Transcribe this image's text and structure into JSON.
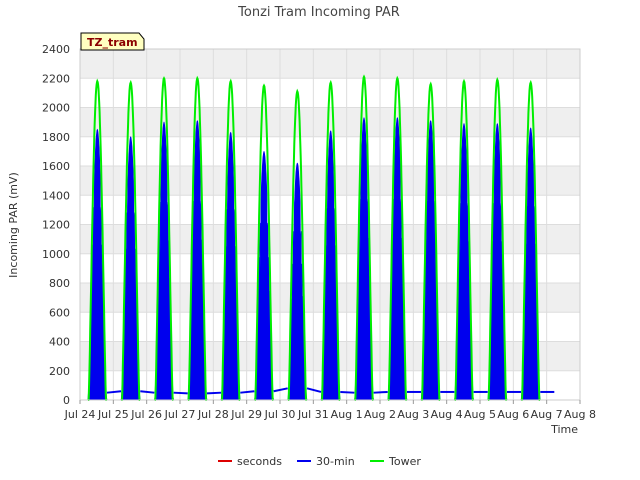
{
  "chart_data": {
    "type": "line",
    "title": "Tonzi Tram Incoming PAR",
    "xlabel": "Time",
    "ylabel": "Incoming PAR (mV)",
    "badge": "TZ_tram",
    "ylim": [
      0,
      2400
    ],
    "yticks": [
      0,
      200,
      400,
      600,
      800,
      1000,
      1200,
      1400,
      1600,
      1800,
      2000,
      2200,
      2400
    ],
    "xticks": [
      "Jul 24",
      "Jul 25",
      "Jul 26",
      "Jul 27",
      "Jul 28",
      "Jul 29",
      "Jul 30",
      "Jul 31",
      "Aug 1",
      "Aug 2",
      "Aug 3",
      "Aug 4",
      "Aug 5",
      "Aug 6",
      "Aug 7",
      "Aug 8"
    ],
    "grid": true,
    "legend_position": "bottom",
    "series": [
      {
        "name": "seconds",
        "color": "#dd0000",
        "values": []
      },
      {
        "name": "30-min",
        "color": "#0000ee",
        "days": [
          "Jul 24",
          "Jul 25",
          "Jul 26",
          "Jul 27",
          "Jul 28",
          "Jul 29",
          "Jul 30",
          "Jul 31",
          "Aug 1",
          "Aug 2",
          "Aug 3",
          "Aug 4",
          "Aug 5",
          "Aug 6"
        ],
        "daily_peak": [
          1850,
          1800,
          1900,
          1910,
          1830,
          1700,
          1620,
          1840,
          1930,
          1930,
          1910,
          1890,
          1890,
          1860
        ],
        "night_level": [
          50,
          60,
          50,
          45,
          50,
          60,
          80,
          55,
          50,
          55,
          55,
          55,
          55,
          55
        ]
      },
      {
        "name": "Tower",
        "color": "#00ee00",
        "days": [
          "Jul 24",
          "Jul 25",
          "Jul 26",
          "Jul 27",
          "Jul 28",
          "Jul 29",
          "Jul 30",
          "Jul 31",
          "Aug 1",
          "Aug 2",
          "Aug 3",
          "Aug 4",
          "Aug 5",
          "Aug 6"
        ],
        "daily_peak": [
          2180,
          2170,
          2200,
          2200,
          2180,
          2150,
          2110,
          2170,
          2210,
          2200,
          2160,
          2180,
          2190,
          2170
        ]
      }
    ]
  }
}
